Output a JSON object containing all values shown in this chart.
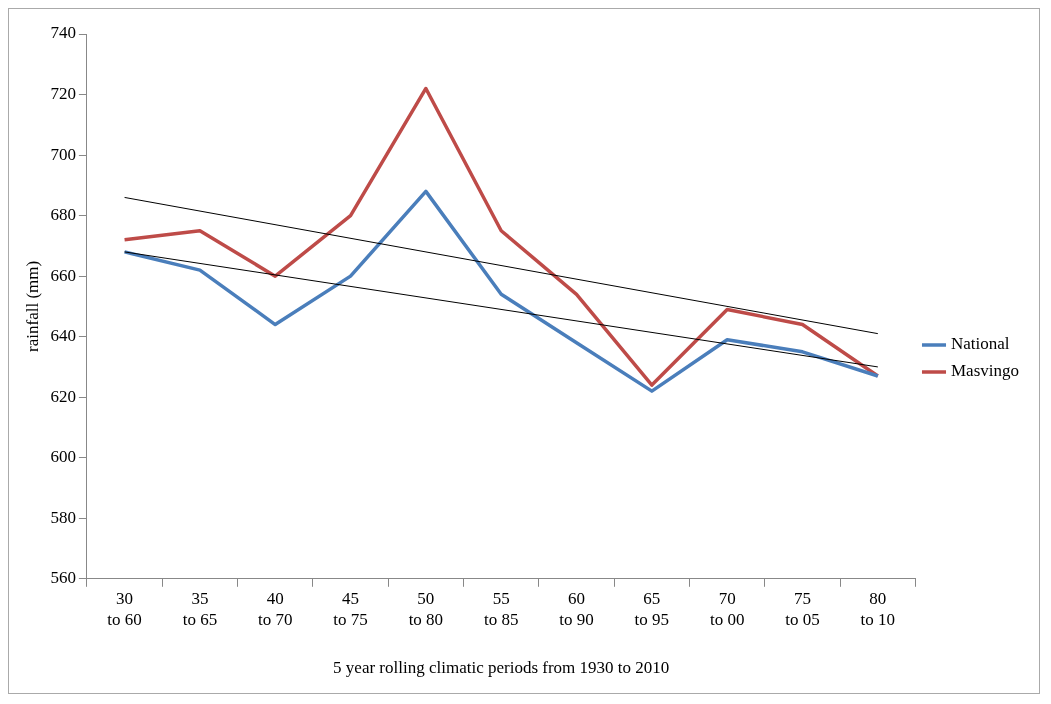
{
  "chart_data": {
    "type": "line",
    "xlabel": "5 year rolling climatic periods from 1930 to 2010",
    "ylabel": "rainfall (mm)",
    "categories": [
      "30\nto 60",
      "35\nto 65",
      "40\nto 70",
      "45\nto 75",
      "50\nto 80",
      "55\nto 85",
      "60\nto 90",
      "65\nto 95",
      "70\nto 00",
      "75\nto 05",
      "80\nto 10"
    ],
    "series": [
      {
        "name": "National",
        "color": "#4a7ebb",
        "values": [
          668,
          662,
          644,
          660,
          688,
          654,
          638,
          622,
          639,
          635,
          627
        ]
      },
      {
        "name": "Masvingo",
        "color": "#be4b48",
        "values": [
          672,
          675,
          660,
          680,
          722,
          675,
          654,
          624,
          649,
          644,
          627
        ]
      },
      {
        "type": "line",
        "color": "#000000",
        "x": [
          "30\nto 60",
          "80\nto 10"
        ],
        "values": [
          686,
          641
        ]
      },
      {
        "type": "line",
        "color": "#000000",
        "x": [
          "30\nto 60",
          "80\nto 10"
        ],
        "values": [
          668,
          630
        ]
      }
    ],
    "ylim": [
      560,
      740
    ],
    "yticks": [
      560,
      580,
      600,
      620,
      640,
      660,
      680,
      700,
      720,
      740
    ],
    "grid": false,
    "legend": "right",
    "marker": "none"
  }
}
